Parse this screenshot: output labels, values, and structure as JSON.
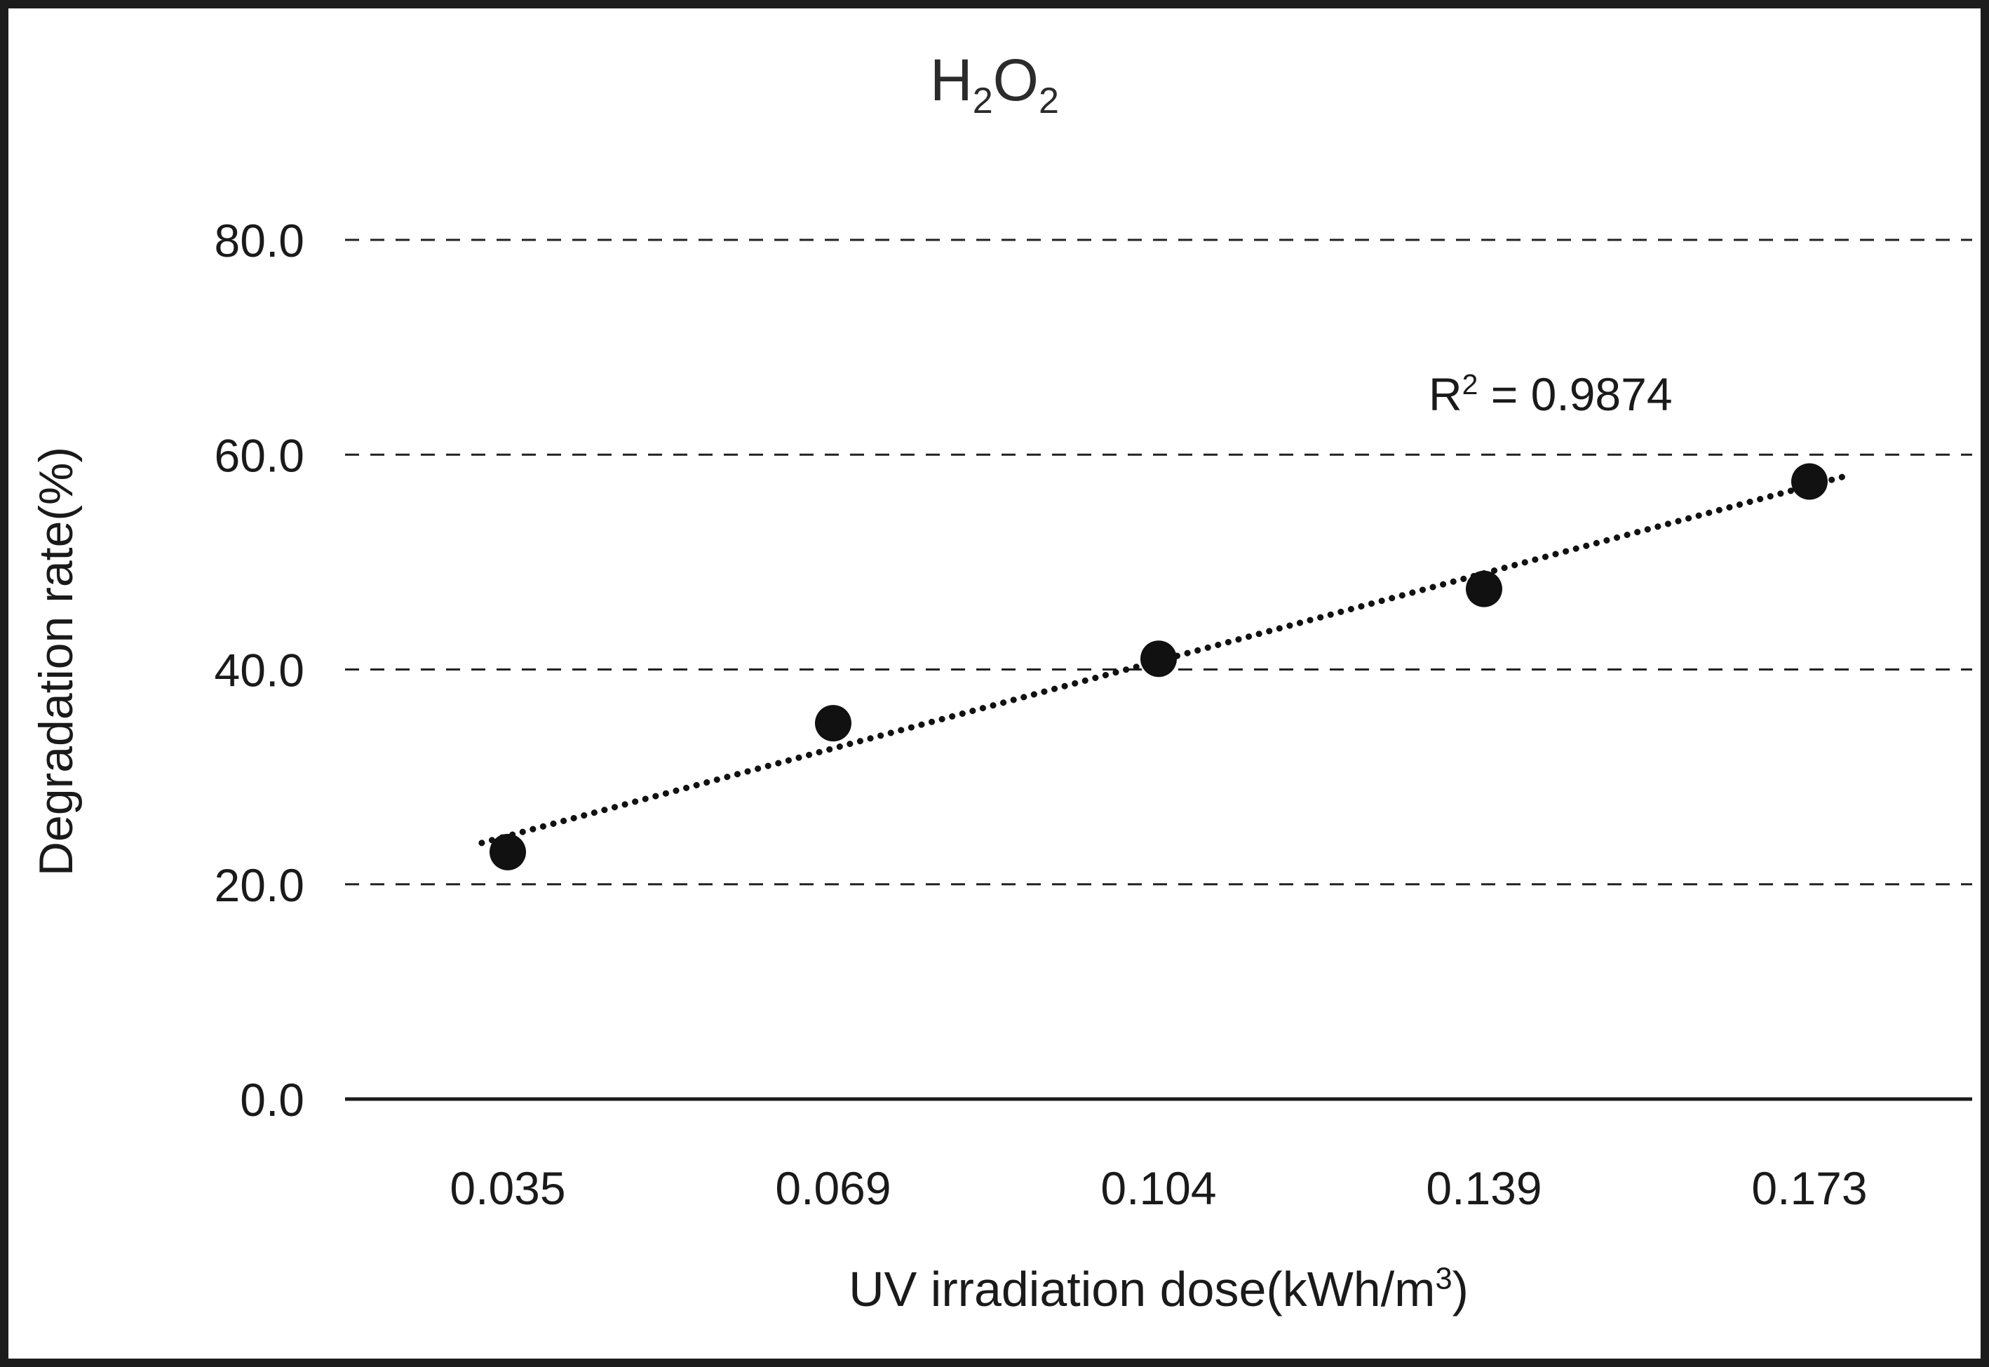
{
  "chart_data": {
    "type": "scatter",
    "title": "H₂O₂",
    "categories": [
      "0.035",
      "0.069",
      "0.104",
      "0.139",
      "0.173"
    ],
    "values": [
      23.0,
      35.0,
      41.0,
      47.5,
      57.5
    ],
    "xlabel": "UV irradiation dose(kWh/m³)",
    "ylabel": "Degradation rate(%)",
    "ylim": [
      0,
      80
    ],
    "ytick_step": 20,
    "yticks": [
      "0.0",
      "20.0",
      "40.0",
      "60.0",
      "80.0"
    ],
    "r_squared": "R² = 0.9874",
    "trendline": "linear-dotted",
    "gridlines": "dashed-horizontal",
    "legend": "none",
    "marker_color": "#111111"
  },
  "title_display": {
    "base1": "H",
    "sub1": "2",
    "base2": "O",
    "sub2": "2"
  },
  "annotation": {
    "base": "R",
    "sup": "2",
    "rest": " = 0.9874"
  },
  "xlabel_display": {
    "base": "UV irradiation dose(kWh/m",
    "sup": "3",
    "close": ")"
  }
}
